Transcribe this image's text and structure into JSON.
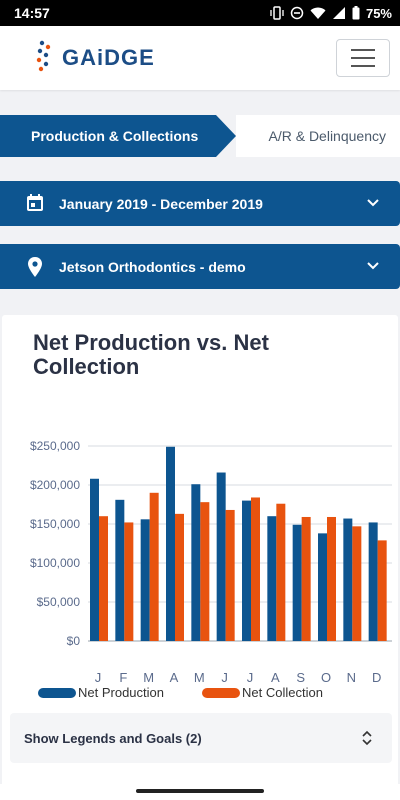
{
  "status": {
    "time": "14:57",
    "battery": "75%"
  },
  "header": {
    "logo": "GAiDGE"
  },
  "tabs": {
    "active": "Production & Collections",
    "inactive": "A/R & Delinquency"
  },
  "filters": {
    "date_range": "January 2019 - December 2019",
    "location": "Jetson Orthodontics - demo"
  },
  "card": {
    "title": "Net Production vs. Net Collection",
    "legend_toggle": "Show Legends and Goals (2)"
  },
  "colors": {
    "production": "#0d5590",
    "collection": "#e8530f",
    "nav": "#0d5590"
  },
  "chart_data": {
    "type": "bar",
    "title": "Net Production vs. Net Collection",
    "categories": [
      "J",
      "F",
      "M",
      "A",
      "M",
      "J",
      "J",
      "A",
      "S",
      "O",
      "N",
      "D"
    ],
    "y_ticks": [
      "$0",
      "$50,000",
      "$100,000",
      "$150,000",
      "$200,000",
      "$250,000"
    ],
    "ylim": [
      0,
      250000
    ],
    "series": [
      {
        "name": "Net Production",
        "values": [
          208000,
          181000,
          156000,
          249000,
          201000,
          216000,
          180000,
          160000,
          149000,
          138000,
          157000,
          152000
        ]
      },
      {
        "name": "Net Collection",
        "values": [
          160000,
          152000,
          190000,
          163000,
          178000,
          168000,
          184000,
          176000,
          159000,
          159000,
          147000,
          129000
        ]
      }
    ],
    "legend": "bottom",
    "grid": true
  }
}
